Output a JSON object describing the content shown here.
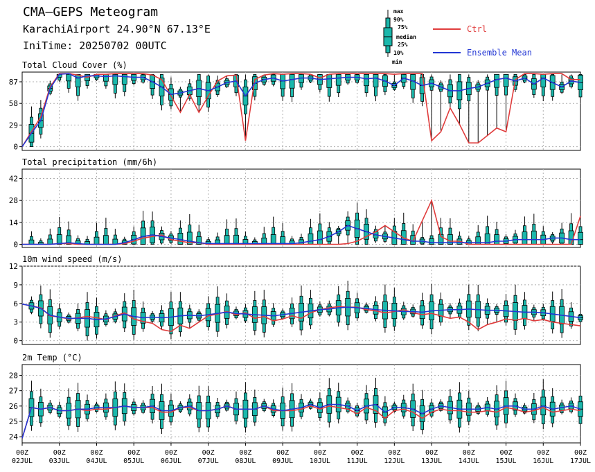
{
  "header": {
    "title": "CMA—GEPS Meteogram",
    "location": "KarachiAirport 24.90°N 67.13°E",
    "init": "IniTime: 20250702 00UTC"
  },
  "legend": {
    "box_labels": [
      "max",
      "90%",
      "75%",
      "median",
      "25%",
      "10%",
      "min"
    ],
    "ctrl_label": "Ctrl",
    "mean_label": "Ensemble Mean"
  },
  "colors": {
    "ctrl": "#e03c3c",
    "mean": "#2236d4",
    "box": "#1bb8ac",
    "grid": "#b0b0b0"
  },
  "chart_data": [
    {
      "type": "line",
      "title": "Total Cloud Cover (%)",
      "ylim": [
        -5,
        100
      ],
      "yticks": [
        0,
        29,
        58,
        87
      ],
      "x": [
        0,
        0.25,
        0.5,
        0.75,
        1,
        1.25,
        1.5,
        1.75,
        2,
        2.25,
        2.5,
        2.75,
        3,
        3.25,
        3.5,
        3.75,
        4,
        4.25,
        4.5,
        4.75,
        5,
        5.25,
        5.5,
        5.75,
        6,
        6.25,
        6.5,
        6.75,
        7,
        7.25,
        7.5,
        7.75,
        8,
        8.25,
        8.5,
        8.75,
        9,
        9.25,
        9.5,
        9.75,
        10,
        10.25,
        10.5,
        10.75,
        11,
        11.25,
        11.5,
        11.75,
        12,
        12.25,
        12.5,
        12.75,
        13,
        13.25,
        13.5,
        13.75,
        14,
        14.25,
        14.5,
        14.75,
        15
      ],
      "series": [
        {
          "name": "Ctrl",
          "values": [
            0,
            20,
            40,
            80,
            98,
            98,
            96,
            93,
            97,
            97,
            98,
            98,
            98,
            98,
            96,
            90,
            68,
            46,
            70,
            46,
            68,
            88,
            95,
            96,
            8,
            90,
            96,
            98,
            97,
            98,
            98,
            97,
            92,
            97,
            98,
            98,
            98,
            98,
            98,
            98,
            97,
            98,
            98,
            98,
            8,
            20,
            52,
            30,
            5,
            5,
            15,
            25,
            20,
            90,
            98,
            98,
            97,
            98,
            98,
            90,
            90
          ]
        },
        {
          "name": "Ensemble Mean",
          "values": [
            0,
            18,
            35,
            78,
            97,
            98,
            92,
            95,
            95,
            94,
            95,
            94,
            93,
            93,
            87,
            80,
            70,
            72,
            75,
            78,
            75,
            80,
            86,
            88,
            68,
            85,
            90,
            92,
            88,
            90,
            92,
            92,
            90,
            91,
            92,
            93,
            93,
            91,
            92,
            88,
            82,
            92,
            88,
            82,
            85,
            80,
            75,
            75,
            78,
            80,
            85,
            90,
            92,
            88,
            92,
            84,
            92,
            86,
            80,
            88,
            86
          ]
        }
      ]
    },
    {
      "type": "line",
      "title": "Total precipitation (mm/6h)",
      "ylim": [
        -2,
        48
      ],
      "yticks": [
        0,
        14,
        28,
        42
      ],
      "x": [
        0,
        0.25,
        0.5,
        0.75,
        1,
        1.25,
        1.5,
        1.75,
        2,
        2.25,
        2.5,
        2.75,
        3,
        3.25,
        3.5,
        3.75,
        4,
        4.25,
        4.5,
        4.75,
        5,
        5.25,
        5.5,
        5.75,
        6,
        6.25,
        6.5,
        6.75,
        7,
        7.25,
        7.5,
        7.75,
        8,
        8.25,
        8.5,
        8.75,
        9,
        9.25,
        9.5,
        9.75,
        10,
        10.25,
        10.5,
        10.75,
        11,
        11.25,
        11.5,
        11.75,
        12,
        12.25,
        12.5,
        12.75,
        13,
        13.25,
        13.5,
        13.75,
        14,
        14.25,
        14.5,
        14.75,
        15
      ],
      "series": [
        {
          "name": "Ctrl",
          "values": [
            0,
            0,
            0,
            0,
            0.5,
            0.5,
            0,
            0,
            0,
            0,
            0,
            0.5,
            2,
            4,
            5,
            6,
            3,
            2,
            1,
            1,
            0,
            0,
            0,
            0,
            0,
            0,
            0,
            0,
            0,
            0,
            0,
            0,
            0,
            0,
            0,
            0.5,
            2,
            5,
            8,
            12,
            8,
            4,
            2,
            15,
            28,
            5,
            2,
            2,
            0,
            0,
            0,
            0,
            0,
            0,
            0,
            0,
            0,
            0,
            0,
            0,
            18
          ]
        },
        {
          "name": "Ensemble Mean",
          "values": [
            0,
            0,
            0,
            0,
            0.5,
            1,
            0.5,
            0,
            0,
            0,
            0,
            1,
            3,
            5,
            6,
            5,
            4,
            3,
            2,
            1,
            0.5,
            0.5,
            0.5,
            0.5,
            0.5,
            0.5,
            0.5,
            0.5,
            0.5,
            0.5,
            1,
            2,
            3,
            5,
            8,
            12,
            10,
            8,
            6,
            5,
            4,
            3,
            2,
            2,
            1,
            1,
            1,
            1,
            1,
            1,
            1,
            2,
            2,
            3,
            3,
            3,
            3,
            4,
            4,
            3,
            3
          ]
        }
      ]
    },
    {
      "type": "line",
      "title": "10m wind speed (m/s)",
      "ylim": [
        -0.6,
        12
      ],
      "yticks": [
        0,
        3,
        6,
        9,
        12
      ],
      "x": [
        0,
        0.25,
        0.5,
        0.75,
        1,
        1.25,
        1.5,
        1.75,
        2,
        2.25,
        2.5,
        2.75,
        3,
        3.25,
        3.5,
        3.75,
        4,
        4.25,
        4.5,
        4.75,
        5,
        5.25,
        5.5,
        5.75,
        6,
        6.25,
        6.5,
        6.75,
        7,
        7.25,
        7.5,
        7.75,
        8,
        8.25,
        8.5,
        8.75,
        9,
        9.25,
        9.5,
        9.75,
        10,
        10.25,
        10.5,
        10.75,
        11,
        11.25,
        11.5,
        11.75,
        12,
        12.25,
        12.5,
        12.75,
        13,
        13.25,
        13.5,
        13.75,
        14,
        14.25,
        14.5,
        14.75,
        15
      ],
      "series": [
        {
          "name": "Ctrl",
          "values": [
            5.9,
            5.6,
            5.3,
            4,
            3.8,
            3.5,
            3.7,
            3.9,
            3.7,
            3.4,
            4,
            4.5,
            3.5,
            3.1,
            2.8,
            1.8,
            1.5,
            2.5,
            2,
            3,
            4,
            4.3,
            4.7,
            4.2,
            4.5,
            3.6,
            3.9,
            3.2,
            3.5,
            4,
            3.6,
            4.5,
            5,
            5.3,
            5.5,
            5.4,
            5.4,
            5,
            4.8,
            4.5,
            4.7,
            5,
            4.5,
            4.2,
            4.4,
            4,
            3.6,
            3.8,
            3,
            1.8,
            2.6,
            3,
            3.5,
            3.3,
            3.6,
            3.2,
            3.4,
            3,
            2.8,
            2.6,
            2.4
          ]
        },
        {
          "name": "Ensemble Mean",
          "values": [
            5.9,
            5.6,
            5.2,
            4.1,
            3.8,
            3.6,
            3.6,
            3.6,
            3.4,
            3.5,
            3.9,
            4.3,
            3.9,
            3.7,
            3.8,
            3.7,
            3.8,
            4,
            4.1,
            4,
            4.2,
            4.4,
            4.6,
            4.4,
            4.3,
            4.2,
            4.1,
            4,
            4.2,
            4.4,
            4.6,
            4.8,
            5,
            5.1,
            5.3,
            5.4,
            5.3,
            5.2,
            5,
            4.9,
            4.8,
            4.7,
            4.7,
            4.6,
            4.8,
            4.9,
            5,
            5,
            5.1,
            5,
            4.9,
            4.9,
            4.8,
            4.7,
            4.6,
            4.6,
            4.5,
            4.3,
            4.1,
            3.9,
            3.7
          ]
        }
      ]
    },
    {
      "type": "line",
      "title": "2m Temp (°C)",
      "ylim": [
        23.6,
        28.7
      ],
      "yticks": [
        24,
        25,
        26,
        27,
        28
      ],
      "x": [
        0,
        0.25,
        0.5,
        0.75,
        1,
        1.25,
        1.5,
        1.75,
        2,
        2.25,
        2.5,
        2.75,
        3,
        3.25,
        3.5,
        3.75,
        4,
        4.25,
        4.5,
        4.75,
        5,
        5.25,
        5.5,
        5.75,
        6,
        6.25,
        6.5,
        6.75,
        7,
        7.25,
        7.5,
        7.75,
        8,
        8.25,
        8.5,
        8.75,
        9,
        9.25,
        9.5,
        9.75,
        10,
        10.25,
        10.5,
        10.75,
        11,
        11.25,
        11.5,
        11.75,
        12,
        12.25,
        12.5,
        12.75,
        13,
        13.25,
        13.5,
        13.75,
        14,
        14.25,
        14.5,
        14.75,
        15
      ],
      "series": [
        {
          "name": "Ctrl",
          "values": [
            23.9,
            25.9,
            25.8,
            25.9,
            25.7,
            25.7,
            25.8,
            25.7,
            25.8,
            25.8,
            25.9,
            26,
            25.9,
            25.9,
            25.9,
            25.6,
            25.6,
            25.9,
            25.9,
            25.7,
            25.7,
            25.8,
            26,
            25.8,
            25.8,
            25.8,
            26,
            25.7,
            25.7,
            25.7,
            25.8,
            26,
            25.8,
            26,
            25.9,
            25.8,
            25.5,
            25.9,
            25.7,
            25.2,
            25.7,
            25.8,
            25.6,
            25.2,
            25.6,
            25.8,
            25.7,
            25.7,
            25.6,
            25.6,
            25.7,
            25.6,
            25.9,
            25.8,
            25.6,
            25.7,
            25.9,
            25.6,
            25.7,
            25.8,
            25.7
          ]
        },
        {
          "name": "Ensemble Mean",
          "values": [
            23.9,
            25.9,
            25.8,
            25.9,
            25.7,
            25.7,
            25.8,
            25.8,
            25.9,
            25.9,
            25.9,
            26,
            25.9,
            25.9,
            26,
            25.7,
            25.7,
            25.9,
            26,
            25.7,
            25.7,
            25.8,
            26,
            25.8,
            25.8,
            25.8,
            26,
            25.8,
            25.7,
            25.8,
            25.9,
            26.1,
            25.9,
            26.1,
            26.1,
            26,
            25.7,
            26,
            26.1,
            25.6,
            25.9,
            25.9,
            25.8,
            25.5,
            25.8,
            26,
            25.9,
            25.8,
            25.8,
            25.8,
            25.9,
            25.8,
            26,
            26,
            25.8,
            25.8,
            26,
            25.8,
            25.9,
            26,
            25.8
          ]
        }
      ]
    }
  ],
  "x_axis": {
    "ticks": [
      {
        "hour": "00Z",
        "date": "02JUL"
      },
      {
        "hour": "00Z",
        "date": "03JUL"
      },
      {
        "hour": "00Z",
        "date": "04JUL"
      },
      {
        "hour": "00Z",
        "date": "05JUL"
      },
      {
        "hour": "00Z",
        "date": "06JUL"
      },
      {
        "hour": "00Z",
        "date": "07JUL"
      },
      {
        "hour": "00Z",
        "date": "08JUL"
      },
      {
        "hour": "00Z",
        "date": "09JUL"
      },
      {
        "hour": "00Z",
        "date": "10JUL"
      },
      {
        "hour": "00Z",
        "date": "11JUL"
      },
      {
        "hour": "00Z",
        "date": "12JUL"
      },
      {
        "hour": "00Z",
        "date": "13JUL"
      },
      {
        "hour": "00Z",
        "date": "14JUL"
      },
      {
        "hour": "00Z",
        "date": "15JUL"
      },
      {
        "hour": "00Z",
        "date": "16JUL"
      },
      {
        "hour": "00Z",
        "date": "17JUL"
      }
    ]
  }
}
